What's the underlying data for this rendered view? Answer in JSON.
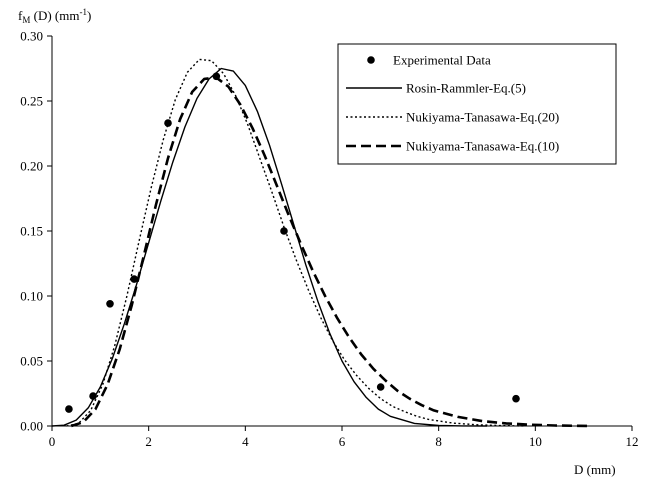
{
  "chart_data": {
    "type": "line",
    "title": "",
    "ylabel": {
      "prefix": "f",
      "subscript": "M",
      "suffix": " (D) (mm",
      "superscript": "-1",
      "close": ")"
    },
    "xlabel": "D (mm)",
    "xlim": [
      0,
      12
    ],
    "ylim": [
      0,
      0.3
    ],
    "x_ticks": [
      "0",
      "2",
      "4",
      "6",
      "8",
      "10",
      "12"
    ],
    "y_ticks": [
      "0.00",
      "0.05",
      "0.10",
      "0.15",
      "0.20",
      "0.25",
      "0.30"
    ],
    "grid": false,
    "legend_position": "top-right",
    "series": [
      {
        "name": "Experimental Data",
        "kind": "scatter",
        "color": "#000000",
        "points": [
          [
            0.35,
            0.013
          ],
          [
            0.85,
            0.023
          ],
          [
            1.2,
            0.094
          ],
          [
            1.7,
            0.113
          ],
          [
            2.4,
            0.233
          ],
          [
            3.4,
            0.269
          ],
          [
            4.8,
            0.15
          ],
          [
            6.8,
            0.03
          ],
          [
            9.6,
            0.021
          ]
        ]
      },
      {
        "name": "Rosin-Rammler-Eq.(5)",
        "kind": "line",
        "dash": "solid",
        "color": "#000000",
        "points": [
          [
            0,
            0
          ],
          [
            0.25,
            0.0006
          ],
          [
            0.5,
            0.0045
          ],
          [
            0.75,
            0.014
          ],
          [
            1.0,
            0.03
          ],
          [
            1.25,
            0.052
          ],
          [
            1.5,
            0.079
          ],
          [
            1.75,
            0.109
          ],
          [
            2.0,
            0.141
          ],
          [
            2.25,
            0.173
          ],
          [
            2.5,
            0.203
          ],
          [
            2.75,
            0.23
          ],
          [
            3.0,
            0.252
          ],
          [
            3.25,
            0.267
          ],
          [
            3.5,
            0.275
          ],
          [
            3.75,
            0.273
          ],
          [
            4.0,
            0.262
          ],
          [
            4.25,
            0.242
          ],
          [
            4.5,
            0.216
          ],
          [
            4.75,
            0.186
          ],
          [
            5.0,
            0.155
          ],
          [
            5.25,
            0.124
          ],
          [
            5.5,
            0.096
          ],
          [
            5.75,
            0.071
          ],
          [
            6.0,
            0.05
          ],
          [
            6.25,
            0.034
          ],
          [
            6.5,
            0.022
          ],
          [
            6.75,
            0.013
          ],
          [
            7.0,
            0.0075
          ],
          [
            7.5,
            0.002
          ],
          [
            8.0,
            0.0004
          ],
          [
            8.5,
            5e-05
          ],
          [
            9.0,
            0
          ]
        ]
      },
      {
        "name": "Nukiyama-Tanasawa-Eq.(20)",
        "kind": "line",
        "dash": "dotted",
        "color": "#000000",
        "points": [
          [
            0.3,
            0
          ],
          [
            0.55,
            0.002
          ],
          [
            0.8,
            0.012
          ],
          [
            1.05,
            0.032
          ],
          [
            1.3,
            0.062
          ],
          [
            1.55,
            0.1
          ],
          [
            1.8,
            0.142
          ],
          [
            2.05,
            0.183
          ],
          [
            2.3,
            0.22
          ],
          [
            2.55,
            0.251
          ],
          [
            2.8,
            0.272
          ],
          [
            3.05,
            0.282
          ],
          [
            3.3,
            0.281
          ],
          [
            3.55,
            0.271
          ],
          [
            3.8,
            0.254
          ],
          [
            4.05,
            0.232
          ],
          [
            4.3,
            0.206
          ],
          [
            4.55,
            0.18
          ],
          [
            4.8,
            0.153
          ],
          [
            5.05,
            0.128
          ],
          [
            5.3,
            0.105
          ],
          [
            5.55,
            0.084
          ],
          [
            5.8,
            0.066
          ],
          [
            6.05,
            0.051
          ],
          [
            6.3,
            0.039
          ],
          [
            6.55,
            0.029
          ],
          [
            6.8,
            0.021
          ],
          [
            7.05,
            0.015
          ],
          [
            7.3,
            0.011
          ],
          [
            7.55,
            0.0075
          ],
          [
            7.8,
            0.005
          ],
          [
            8.3,
            0.0022
          ],
          [
            8.8,
            0.0009
          ],
          [
            9.3,
            0.0003
          ],
          [
            9.8,
            0
          ]
        ]
      },
      {
        "name": "Nukiyama-Tanasawa-Eq.(10)",
        "kind": "line",
        "dash": "dashed",
        "color": "#000000",
        "points": [
          [
            0.4,
            0
          ],
          [
            0.65,
            0.003
          ],
          [
            0.9,
            0.013
          ],
          [
            1.15,
            0.032
          ],
          [
            1.4,
            0.059
          ],
          [
            1.65,
            0.093
          ],
          [
            1.9,
            0.131
          ],
          [
            2.15,
            0.17
          ],
          [
            2.4,
            0.206
          ],
          [
            2.65,
            0.236
          ],
          [
            2.9,
            0.257
          ],
          [
            3.15,
            0.267
          ],
          [
            3.4,
            0.268
          ],
          [
            3.65,
            0.261
          ],
          [
            3.9,
            0.247
          ],
          [
            4.15,
            0.229
          ],
          [
            4.4,
            0.208
          ],
          [
            4.65,
            0.185
          ],
          [
            4.9,
            0.162
          ],
          [
            5.15,
            0.14
          ],
          [
            5.4,
            0.119
          ],
          [
            5.65,
            0.1
          ],
          [
            5.9,
            0.083
          ],
          [
            6.15,
            0.068
          ],
          [
            6.4,
            0.055
          ],
          [
            6.65,
            0.044
          ],
          [
            6.9,
            0.035
          ],
          [
            7.15,
            0.027
          ],
          [
            7.4,
            0.021
          ],
          [
            7.65,
            0.016
          ],
          [
            7.9,
            0.012
          ],
          [
            8.4,
            0.007
          ],
          [
            8.9,
            0.0038
          ],
          [
            9.4,
            0.002
          ],
          [
            9.9,
            0.001
          ],
          [
            10.4,
            0.0004
          ],
          [
            11.1,
            0
          ]
        ]
      }
    ]
  }
}
